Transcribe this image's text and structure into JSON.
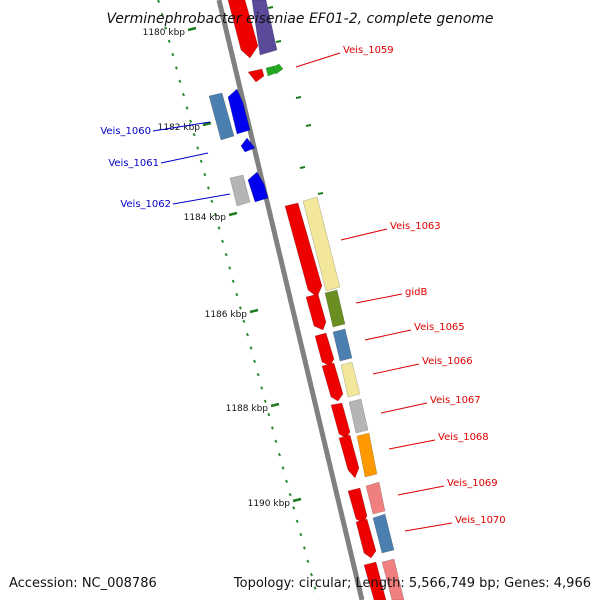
{
  "title": "Verminephrobacter eiseniae EF01-2, complete genome",
  "footer": {
    "accession": "Accession: NC_008786",
    "summary": "Topology: circular; Length: 5,566,749 bp; Genes: 4,966"
  },
  "ruler_labels": [
    "1180 kbp",
    "1182 kbp",
    "1184 kbp",
    "1186 kbp",
    "1188 kbp",
    "1190 kbp"
  ],
  "left_gene_labels": [
    "Veis_1060",
    "Veis_1061",
    "Veis_1062"
  ],
  "right_gene_labels": [
    "Veis_1059",
    "Veis_1063",
    "gidB",
    "Veis_1065",
    "Veis_1066",
    "Veis_1067",
    "Veis_1068",
    "Veis_1069",
    "Veis_1070"
  ],
  "colors": {
    "backbone": "#808080",
    "dot_green": "#2e8b2e",
    "tick_green": "#1e7a1e",
    "cds_red": "#ee0000",
    "left_label": "#0000cc",
    "right_label": "#dd0000",
    "blue": "#0000ee",
    "steel": "#4a7fb0",
    "purple": "#5b4a9a",
    "light_yellow": "#f2e79a",
    "olive": "#6b8e23",
    "grey": "#b5b5b5",
    "orange": "#ff9900",
    "pink": "#f08080",
    "green": "#22aa22"
  }
}
